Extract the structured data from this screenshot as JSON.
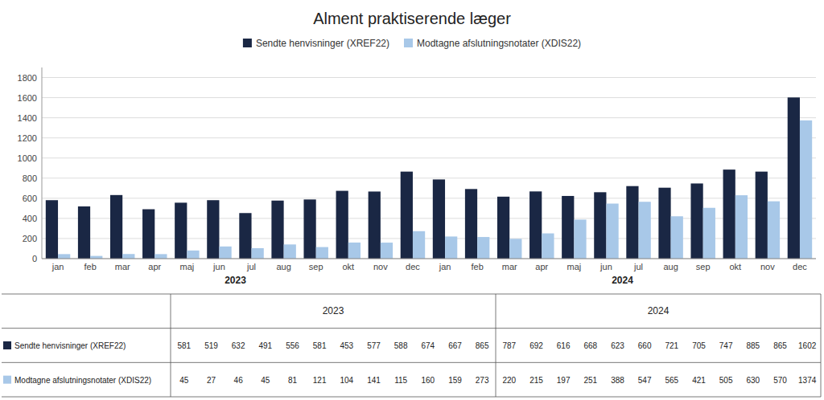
{
  "chart_data": {
    "type": "bar",
    "title": "Alment praktiserende læger",
    "categories": [
      "jan",
      "feb",
      "mar",
      "apr",
      "maj",
      "jun",
      "jul",
      "aug",
      "sep",
      "okt",
      "nov",
      "dec",
      "jan",
      "feb",
      "mar",
      "apr",
      "maj",
      "jun",
      "jul",
      "aug",
      "sep",
      "okt",
      "nov",
      "dec"
    ],
    "category_groups": [
      {
        "label": "2023",
        "size": 12
      },
      {
        "label": "2024",
        "size": 12
      }
    ],
    "series": [
      {
        "name": "Sendte henvisninger (XREF22)",
        "color": "#1a2744",
        "values": [
          581,
          519,
          632,
          491,
          556,
          581,
          453,
          577,
          588,
          674,
          667,
          865,
          787,
          692,
          616,
          668,
          623,
          660,
          721,
          705,
          747,
          885,
          865,
          1602
        ]
      },
      {
        "name": "Modtagne afslutningsnotater (XDIS22)",
        "color": "#a8c8e8",
        "values": [
          45,
          27,
          46,
          45,
          81,
          121,
          104,
          141,
          115,
          160,
          159,
          273,
          220,
          215,
          197,
          251,
          388,
          547,
          565,
          421,
          505,
          630,
          570,
          1374
        ]
      }
    ],
    "ylim": [
      0,
      1900
    ],
    "yticks": [
      0,
      200,
      400,
      600,
      800,
      1000,
      1200,
      1400,
      1600,
      1800
    ],
    "grid": true,
    "legend": "top"
  }
}
